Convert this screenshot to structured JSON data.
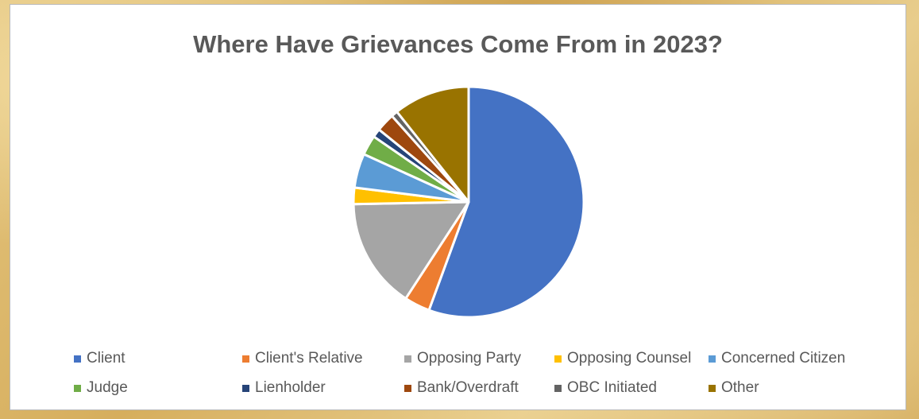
{
  "chart_data": {
    "type": "pie",
    "title": "Where Have Grievances Come From in 2023?",
    "start_angle_deg": 0,
    "direction": "clockwise",
    "legend_position": "bottom",
    "slices": [
      {
        "name": "Client",
        "value": 55.6,
        "color": "#4472c4"
      },
      {
        "name": "Client's Relative",
        "value": 3.6,
        "color": "#ed7d31"
      },
      {
        "name": "Opposing Party",
        "value": 15.5,
        "color": "#a5a5a5"
      },
      {
        "name": "Opposing Counsel",
        "value": 2.3,
        "color": "#ffc000"
      },
      {
        "name": "Concerned Citizen",
        "value": 4.8,
        "color": "#5b9bd5"
      },
      {
        "name": "Judge",
        "value": 2.8,
        "color": "#70ad47"
      },
      {
        "name": "Lienholder",
        "value": 1.2,
        "color": "#264478"
      },
      {
        "name": "Bank/Overdraft",
        "value": 2.6,
        "color": "#9e480e"
      },
      {
        "name": "OBC Initiated",
        "value": 0.9,
        "color": "#636363"
      },
      {
        "name": "Other",
        "value": 10.7,
        "color": "#997300"
      }
    ]
  }
}
